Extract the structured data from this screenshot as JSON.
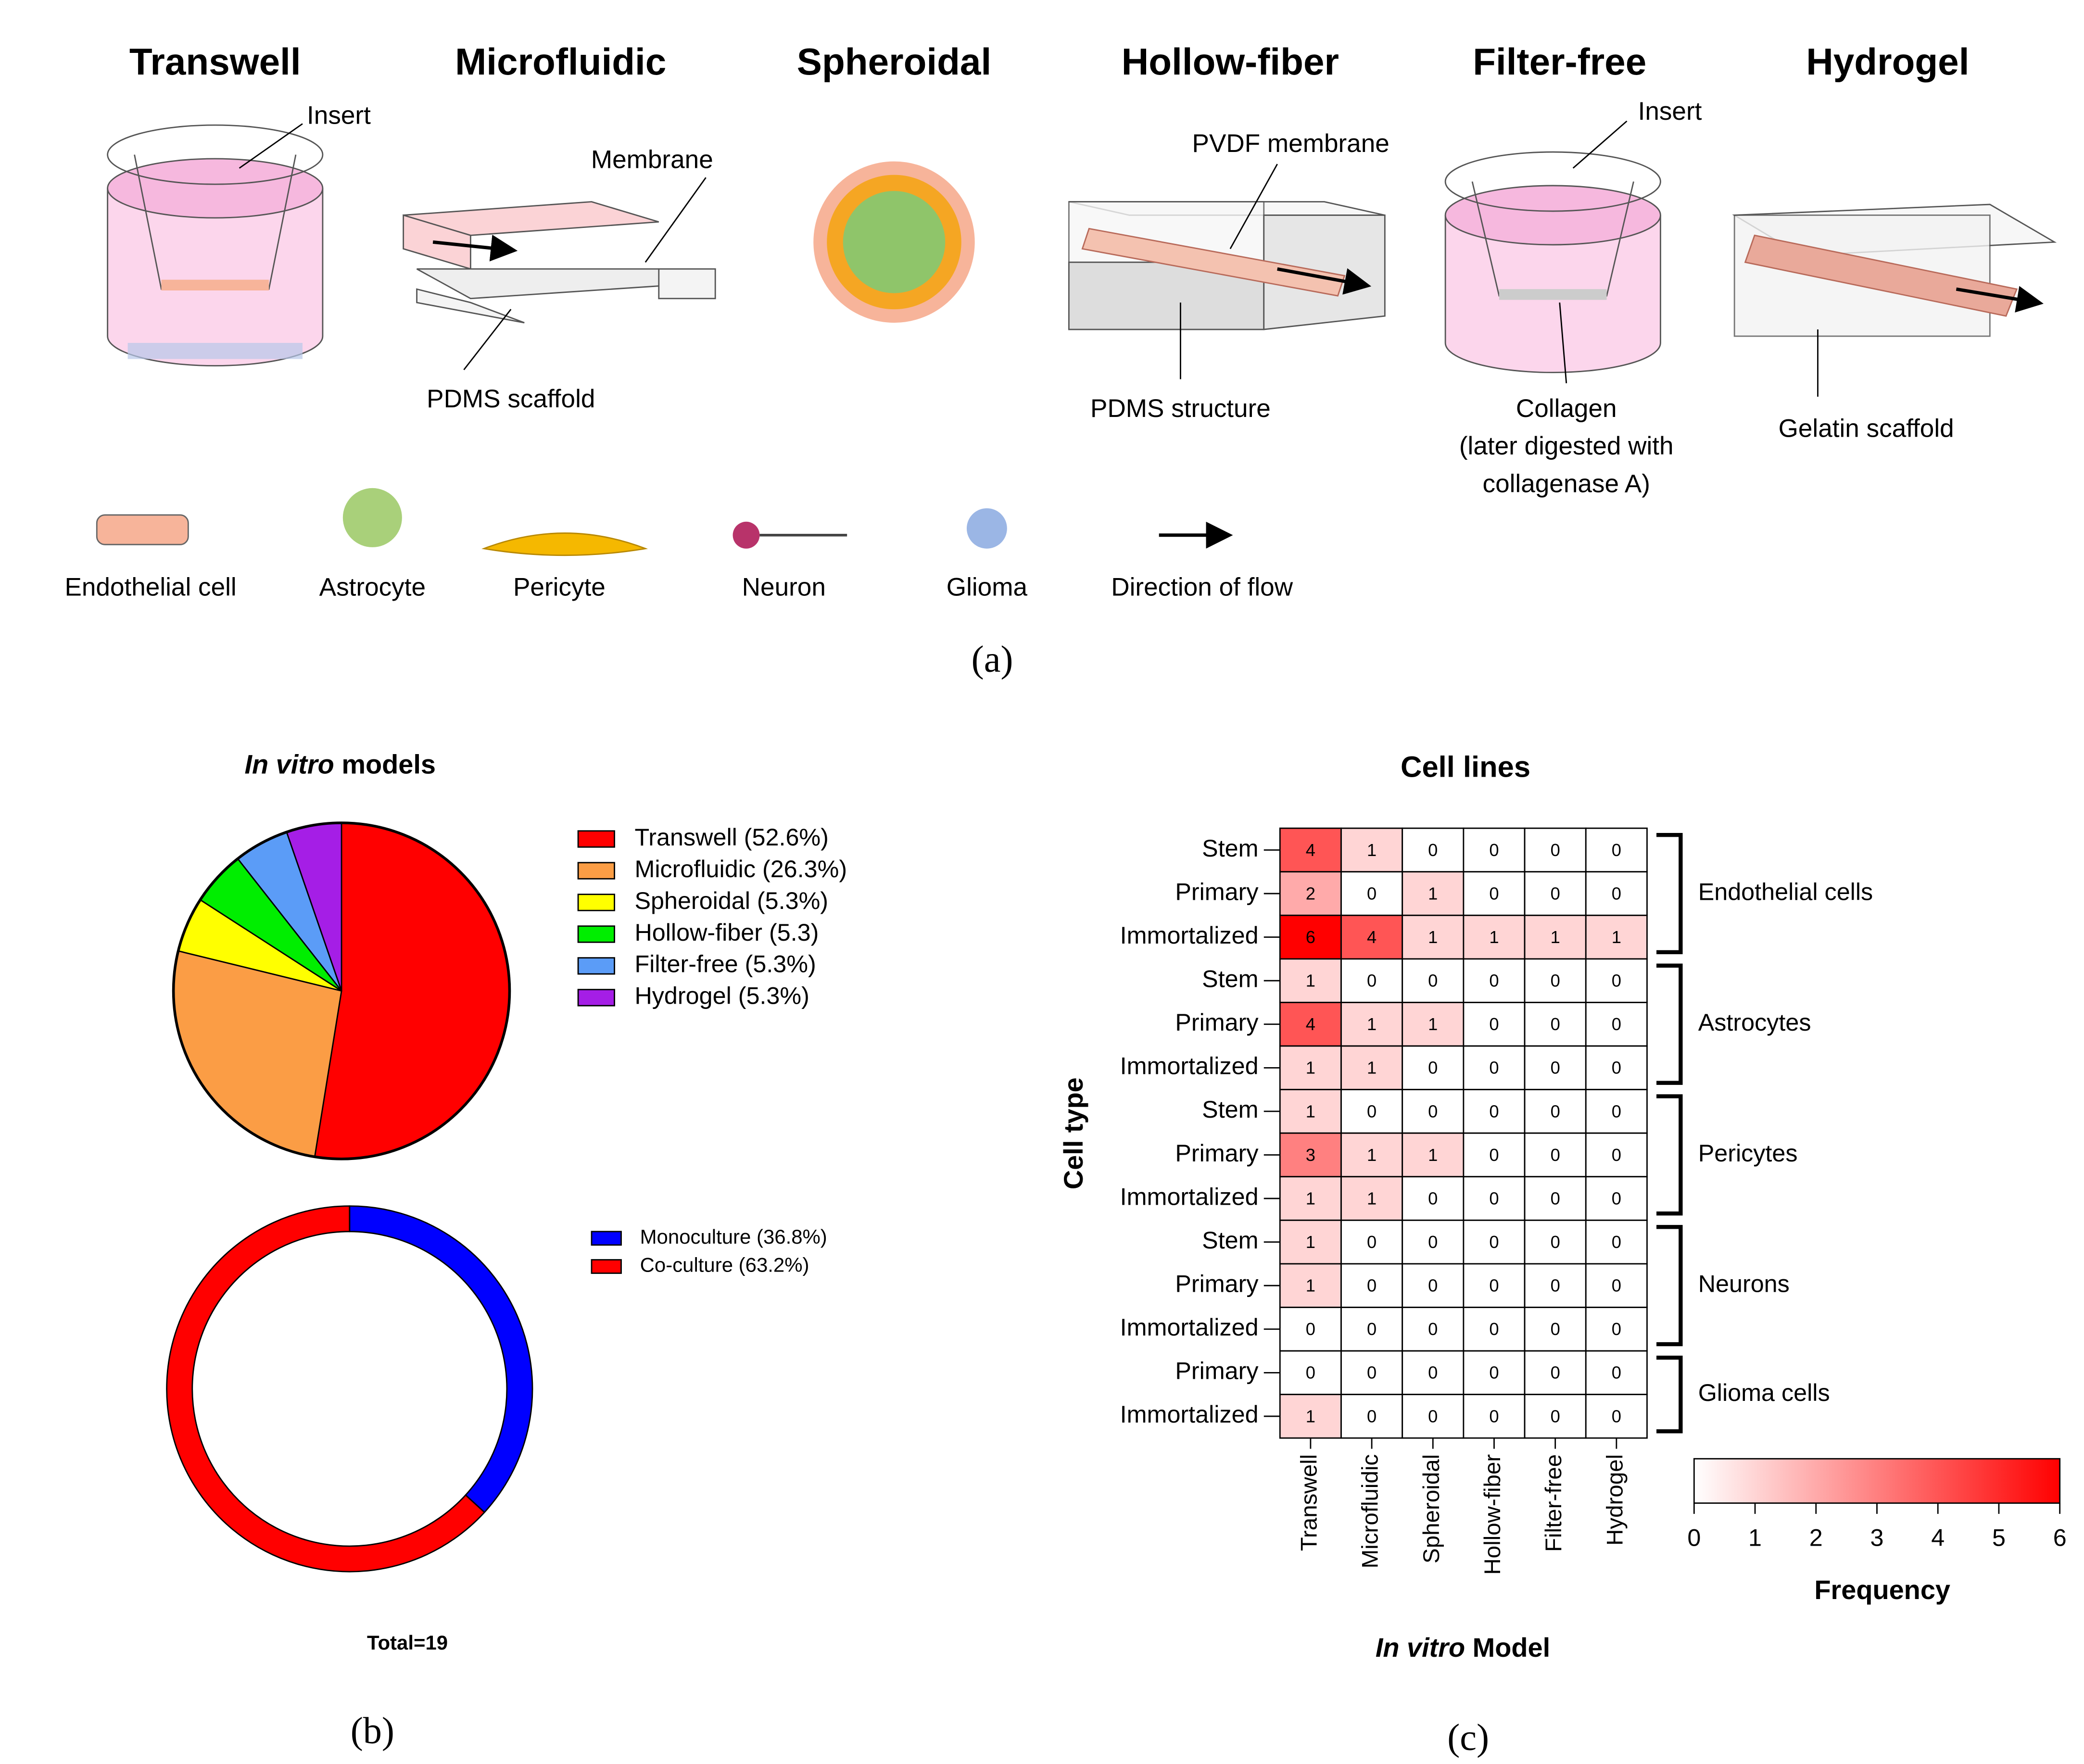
{
  "panel_a": {
    "models": [
      "Transwell",
      "Microfluidic",
      "Spheroidal",
      "Hollow-fiber",
      "Filter-free",
      "Hydrogel"
    ],
    "labels": {
      "insert_1": "Insert",
      "membrane": "Membrane",
      "pdms_scaffold": "PDMS scaffold",
      "pvdf": "PVDF membrane",
      "pdms_structure": "PDMS structure",
      "insert_2": "Insert",
      "collagen": [
        "Collagen",
        "(later digested with",
        "collagenase A)"
      ],
      "gelatin": "Gelatin scaffold"
    },
    "legend": [
      "Endothelial cell",
      "Astrocyte",
      "Pericyte",
      "Neuron",
      "Glioma",
      "Direction of flow"
    ],
    "caption": "(a)"
  },
  "panel_b": {
    "caption": "(b)"
  },
  "panel_c": {
    "caption": "(c)"
  },
  "chart_data": [
    {
      "type": "pie",
      "title": {
        "italic": "In vitro",
        "rest": " models"
      },
      "categories": [
        "Transwell (52.6%)",
        "Microfluidic (26.3%)",
        "Spheroidal (5.3%)",
        "Hollow-fiber (5.3)",
        "Filter-free (5.3%)",
        "Hydrogel (5.3%)"
      ],
      "values": [
        52.6,
        26.3,
        5.3,
        5.3,
        5.3,
        5.3
      ],
      "colors": [
        "#ff0000",
        "#fb9d45",
        "#ffff00",
        "#00ee00",
        "#5b9cf7",
        "#a51ee6"
      ]
    },
    {
      "type": "donut",
      "categories": [
        "Monoculture (36.8%)",
        "Co-culture (63.2%)"
      ],
      "values": [
        36.8,
        63.2
      ],
      "colors": [
        "#0000ff",
        "#ff0000"
      ],
      "annotation": "Total=19"
    },
    {
      "type": "heatmap",
      "title": "Cell lines",
      "xlabel": {
        "italic": "In vitro",
        "rest": " Model"
      },
      "ylabel": "Cell type",
      "x": [
        "Transwell",
        "Microfluidic",
        "Spheroidal",
        "Hollow-fiber",
        "Filter-free",
        "Hydrogel"
      ],
      "groups": [
        {
          "name": "Endothelial cells",
          "rows": [
            "Stem",
            "Primary",
            "Immortalized"
          ],
          "values": [
            [
              4,
              1,
              0,
              0,
              0,
              0
            ],
            [
              2,
              0,
              1,
              0,
              0,
              0
            ],
            [
              6,
              4,
              1,
              1,
              1,
              1
            ]
          ]
        },
        {
          "name": "Astrocytes",
          "rows": [
            "Stem",
            "Primary",
            "Immortalized"
          ],
          "values": [
            [
              1,
              0,
              0,
              0,
              0,
              0
            ],
            [
              4,
              1,
              1,
              0,
              0,
              0
            ],
            [
              1,
              1,
              0,
              0,
              0,
              0
            ]
          ]
        },
        {
          "name": "Pericytes",
          "rows": [
            "Stem",
            "Primary",
            "Immortalized"
          ],
          "values": [
            [
              1,
              0,
              0,
              0,
              0,
              0
            ],
            [
              3,
              1,
              1,
              0,
              0,
              0
            ],
            [
              1,
              1,
              0,
              0,
              0,
              0
            ]
          ]
        },
        {
          "name": "Neurons",
          "rows": [
            "Stem",
            "Primary",
            "Immortalized"
          ],
          "values": [
            [
              1,
              0,
              0,
              0,
              0,
              0
            ],
            [
              1,
              0,
              0,
              0,
              0,
              0
            ],
            [
              0,
              0,
              0,
              0,
              0,
              0
            ]
          ]
        },
        {
          "name": "Glioma cells",
          "rows": [
            "Primary",
            "Immortalized"
          ],
          "values": [
            [
              0,
              0,
              0,
              0,
              0,
              0
            ],
            [
              1,
              0,
              0,
              0,
              0,
              0
            ]
          ]
        }
      ],
      "colorbar": {
        "label": "Frequency",
        "lim": [
          0,
          6
        ],
        "ticks": [
          0,
          1,
          2,
          3,
          4,
          5,
          6
        ],
        "colors": [
          "#ffffff",
          "#ff0000"
        ]
      }
    }
  ]
}
